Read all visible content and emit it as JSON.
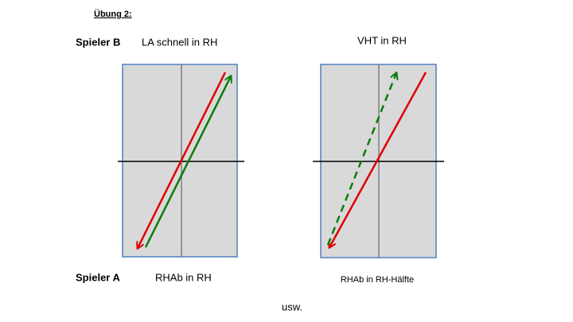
{
  "header": {
    "title": "Übung 2:"
  },
  "top": {
    "player": "Spieler B",
    "left_label": "LA schnell in RH",
    "right_label": "VHT in RH"
  },
  "bottom": {
    "player": "Spieler A",
    "left_label": "RHAb in RH",
    "right_label": "RHAb in RH-Hälfte"
  },
  "footer": {
    "text": "usw."
  }
}
